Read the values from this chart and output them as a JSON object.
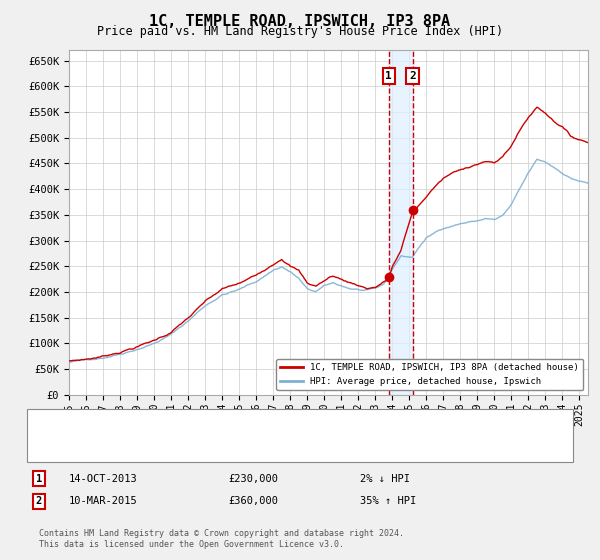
{
  "title": "1C, TEMPLE ROAD, IPSWICH, IP3 8PA",
  "subtitle": "Price paid vs. HM Land Registry's House Price Index (HPI)",
  "ylim": [
    0,
    670000
  ],
  "yticks": [
    0,
    50000,
    100000,
    150000,
    200000,
    250000,
    300000,
    350000,
    400000,
    450000,
    500000,
    550000,
    600000,
    650000
  ],
  "ytick_labels": [
    "£0",
    "£50K",
    "£100K",
    "£150K",
    "£200K",
    "£250K",
    "£300K",
    "£350K",
    "£400K",
    "£450K",
    "£500K",
    "£550K",
    "£600K",
    "£650K"
  ],
  "hpi_color": "#7eb0d4",
  "price_color": "#cc0000",
  "marker_color": "#cc0000",
  "vline_color": "#cc0000",
  "vline_shade": "#ddeeff",
  "background_color": "#f0f0f0",
  "plot_bg": "#ffffff",
  "sale1_date": 2013.79,
  "sale1_price": 230000,
  "sale2_date": 2015.19,
  "sale2_price": 360000,
  "legend_line1": "1C, TEMPLE ROAD, IPSWICH, IP3 8PA (detached house)",
  "legend_line2": "HPI: Average price, detached house, Ipswich",
  "annotation1_text": "14-OCT-2013",
  "annotation1_price": "£230,000",
  "annotation1_hpi": "2% ↓ HPI",
  "annotation2_text": "10-MAR-2015",
  "annotation2_price": "£360,000",
  "annotation2_hpi": "35% ↑ HPI",
  "footer": "Contains HM Land Registry data © Crown copyright and database right 2024.\nThis data is licensed under the Open Government Licence v3.0.",
  "xmin": 1995.0,
  "xmax": 2025.5,
  "hpi_waypoints": [
    [
      1995.0,
      63000
    ],
    [
      1996.0,
      67000
    ],
    [
      1997.0,
      73000
    ],
    [
      1998.0,
      82000
    ],
    [
      1999.0,
      93000
    ],
    [
      2000.0,
      105000
    ],
    [
      2001.0,
      122000
    ],
    [
      2002.0,
      148000
    ],
    [
      2003.0,
      178000
    ],
    [
      2004.0,
      200000
    ],
    [
      2005.0,
      210000
    ],
    [
      2006.0,
      225000
    ],
    [
      2007.0,
      248000
    ],
    [
      2007.5,
      255000
    ],
    [
      2008.0,
      245000
    ],
    [
      2008.5,
      232000
    ],
    [
      2009.0,
      210000
    ],
    [
      2009.5,
      205000
    ],
    [
      2010.0,
      215000
    ],
    [
      2010.5,
      220000
    ],
    [
      2011.0,
      215000
    ],
    [
      2011.5,
      210000
    ],
    [
      2012.0,
      208000
    ],
    [
      2012.5,
      205000
    ],
    [
      2013.0,
      207000
    ],
    [
      2013.5,
      215000
    ],
    [
      2013.79,
      235000
    ],
    [
      2014.0,
      245000
    ],
    [
      2014.5,
      270000
    ],
    [
      2015.19,
      268000
    ],
    [
      2015.5,
      285000
    ],
    [
      2016.0,
      305000
    ],
    [
      2016.5,
      315000
    ],
    [
      2017.0,
      325000
    ],
    [
      2017.5,
      330000
    ],
    [
      2018.0,
      335000
    ],
    [
      2018.5,
      338000
    ],
    [
      2019.0,
      340000
    ],
    [
      2019.5,
      345000
    ],
    [
      2020.0,
      342000
    ],
    [
      2020.5,
      350000
    ],
    [
      2021.0,
      370000
    ],
    [
      2021.5,
      400000
    ],
    [
      2022.0,
      430000
    ],
    [
      2022.5,
      455000
    ],
    [
      2023.0,
      450000
    ],
    [
      2023.5,
      440000
    ],
    [
      2024.0,
      430000
    ],
    [
      2024.5,
      420000
    ],
    [
      2025.0,
      415000
    ],
    [
      2025.5,
      410000
    ]
  ],
  "price_waypoints": [
    [
      1995.0,
      65000
    ],
    [
      1996.0,
      69000
    ],
    [
      1997.0,
      75000
    ],
    [
      1998.0,
      85000
    ],
    [
      1999.0,
      96000
    ],
    [
      2000.0,
      108000
    ],
    [
      2001.0,
      125000
    ],
    [
      2002.0,
      152000
    ],
    [
      2003.0,
      182000
    ],
    [
      2004.0,
      205000
    ],
    [
      2005.0,
      215000
    ],
    [
      2006.0,
      230000
    ],
    [
      2007.0,
      255000
    ],
    [
      2007.5,
      268000
    ],
    [
      2008.0,
      255000
    ],
    [
      2008.5,
      245000
    ],
    [
      2009.0,
      220000
    ],
    [
      2009.5,
      215000
    ],
    [
      2010.0,
      225000
    ],
    [
      2010.5,
      235000
    ],
    [
      2011.0,
      228000
    ],
    [
      2011.5,
      222000
    ],
    [
      2012.0,
      218000
    ],
    [
      2012.5,
      212000
    ],
    [
      2013.0,
      215000
    ],
    [
      2013.5,
      225000
    ],
    [
      2013.79,
      230000
    ],
    [
      2014.0,
      255000
    ],
    [
      2014.5,
      285000
    ],
    [
      2015.19,
      360000
    ],
    [
      2015.5,
      370000
    ],
    [
      2016.0,
      390000
    ],
    [
      2016.5,
      410000
    ],
    [
      2017.0,
      425000
    ],
    [
      2017.5,
      435000
    ],
    [
      2018.0,
      440000
    ],
    [
      2018.5,
      448000
    ],
    [
      2019.0,
      455000
    ],
    [
      2019.5,
      460000
    ],
    [
      2020.0,
      455000
    ],
    [
      2020.5,
      468000
    ],
    [
      2021.0,
      490000
    ],
    [
      2021.5,
      520000
    ],
    [
      2022.0,
      545000
    ],
    [
      2022.5,
      565000
    ],
    [
      2023.0,
      555000
    ],
    [
      2023.5,
      540000
    ],
    [
      2024.0,
      530000
    ],
    [
      2024.5,
      510000
    ],
    [
      2025.0,
      505000
    ],
    [
      2025.5,
      500000
    ]
  ]
}
